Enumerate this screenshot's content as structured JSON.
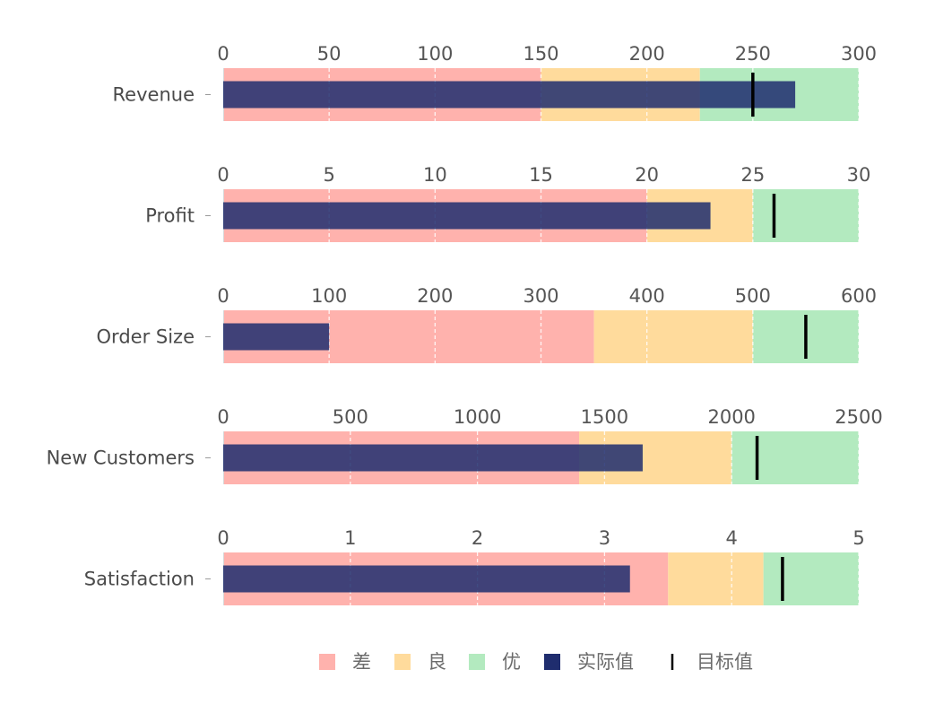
{
  "chart_data": {
    "type": "bullet",
    "title": "",
    "legend": {
      "position": "bottom-center",
      "items": [
        {
          "key": "poor",
          "label": "差",
          "color": "#ffb2ad",
          "marker": "square"
        },
        {
          "key": "fair",
          "label": "良",
          "color": "#ffdb9c",
          "marker": "square"
        },
        {
          "key": "good",
          "label": "优",
          "color": "#b3eabf",
          "marker": "square"
        },
        {
          "key": "actual",
          "label": "实际值",
          "color": "#1f2d6e",
          "marker": "square"
        },
        {
          "key": "target",
          "label": "目标值",
          "color": "#000000",
          "marker": "line"
        }
      ]
    },
    "grid": true,
    "metrics": [
      {
        "name": "Revenue",
        "xlim": [
          0,
          300
        ],
        "ticks": [
          0,
          50,
          100,
          150,
          200,
          250,
          300
        ],
        "tick_labels": [
          "0",
          "50",
          "100",
          "150",
          "200",
          "250",
          "300"
        ],
        "ranges": [
          150,
          225,
          300
        ],
        "actual": 270,
        "target": 250
      },
      {
        "name": "Profit",
        "xlim": [
          0,
          30
        ],
        "ticks": [
          0,
          5,
          10,
          15,
          20,
          25,
          30
        ],
        "tick_labels": [
          "0",
          "5",
          "10",
          "15",
          "20",
          "25",
          "30"
        ],
        "ranges": [
          20,
          25,
          30
        ],
        "actual": 23,
        "target": 26
      },
      {
        "name": "Order Size",
        "xlim": [
          0,
          600
        ],
        "ticks": [
          0,
          100,
          200,
          300,
          400,
          500,
          600
        ],
        "tick_labels": [
          "0",
          "100",
          "200",
          "300",
          "400",
          "500",
          "600"
        ],
        "ranges": [
          350,
          500,
          600
        ],
        "actual": 100,
        "target": 550
      },
      {
        "name": "New Customers",
        "xlim": [
          0,
          2500
        ],
        "ticks": [
          0,
          500,
          1000,
          1500,
          2000,
          2500
        ],
        "tick_labels": [
          "0",
          "500",
          "1000",
          "1500",
          "2000",
          "2500"
        ],
        "ranges": [
          1400,
          2000,
          2500
        ],
        "actual": 1650,
        "target": 2100
      },
      {
        "name": "Satisfaction",
        "xlim": [
          0,
          5
        ],
        "ticks": [
          0,
          1,
          2,
          3,
          4,
          5
        ],
        "tick_labels": [
          "0",
          "1",
          "2",
          "3",
          "4",
          "5"
        ],
        "ranges": [
          3.5,
          4.25,
          5
        ],
        "actual": 3.2,
        "target": 4.4
      }
    ]
  }
}
